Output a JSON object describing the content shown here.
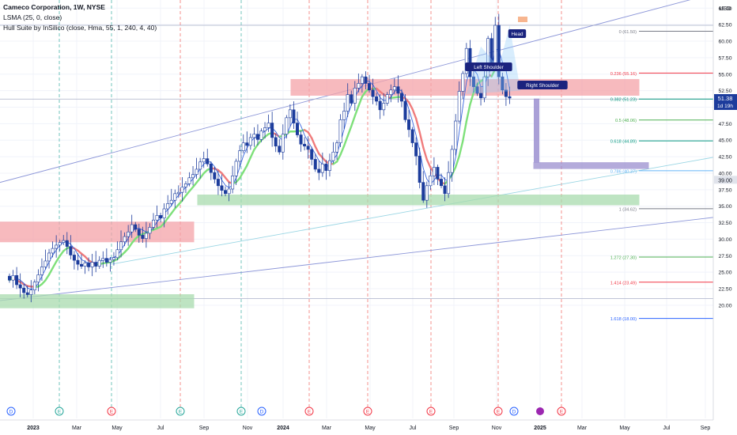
{
  "legend": {
    "symbol_line": "Cameco Corporation, 1W, NYSE",
    "indicator1": "LSMA (25, 0, close)",
    "indicator2": "Hull Suite by InSilico (close, Hma, 55, 1, 240, 4, 40)"
  },
  "price_axis": {
    "currency": "USD",
    "last_price": "51.38",
    "countdown": "1d 19h",
    "marker_price": "39.00"
  },
  "colors": {
    "bull": "#ffffff",
    "bear": "#1c3c9c",
    "hull_up": "#7ee07a",
    "hull_down": "#f07c7c",
    "lsma": "#3a68e0",
    "supply_zone": "#f5a3a9",
    "demand_zone": "#a9dcae",
    "projection": "#9b8fd0"
  },
  "annotations": {
    "left_shoulder": "Left Shoulder",
    "head": "Head",
    "right_shoulder": "Right Shoulder"
  },
  "event_badges": [
    "D",
    "E",
    "E",
    "E",
    "E",
    "D",
    "E",
    "E",
    "E",
    "E",
    "D",
    "E"
  ],
  "chart_data": {
    "type": "candlestick",
    "ylim": [
      17.5,
      67
    ],
    "y_ticks": [
      20,
      22.5,
      25,
      27.5,
      30,
      32.5,
      35,
      37.5,
      40,
      42.5,
      45,
      47.5,
      50,
      52.5,
      55,
      57.5,
      60,
      62.5,
      65
    ],
    "x_tick_labels": [
      "2023",
      "Mar",
      "May",
      "Jul",
      "Sep",
      "Nov",
      "2024",
      "Mar",
      "May",
      "Jul",
      "Sep",
      "Nov",
      "2025",
      "Mar",
      "May",
      "Jul",
      "Sep"
    ],
    "close": [
      23.8,
      24.5,
      23.1,
      22.6,
      21.9,
      21.6,
      22.3,
      23.5,
      24.6,
      25.8,
      26.7,
      27.9,
      28.6,
      29.1,
      29.5,
      29.8,
      28.9,
      27.6,
      26.8,
      26.2,
      25.9,
      26.4,
      25.8,
      26.5,
      25.9,
      26.8,
      27.1,
      26.5,
      26.9,
      27.2,
      28.4,
      29.6,
      30.4,
      31.1,
      32.2,
      31.5,
      30.6,
      30.1,
      30.9,
      31.8,
      32.9,
      33.6,
      33.2,
      34.6,
      35.4,
      35.9,
      36.9,
      37.1,
      37.9,
      38.4,
      39.3,
      39.8,
      40.6,
      41.7,
      42.2,
      41.4,
      40.1,
      39.1,
      38.1,
      37.4,
      36.9,
      37.6,
      39.6,
      41.8,
      43.4,
      44.6,
      44.2,
      45.4,
      45.9,
      45.1,
      46.4,
      46.9,
      47.6,
      45.4,
      44.1,
      43.2,
      45.9,
      48.4,
      49.6,
      47.6,
      45.8,
      44.4,
      44.1,
      43.6,
      42.1,
      40.6,
      40.1,
      41.4,
      40.4,
      41.9,
      43.2,
      44.6,
      48.1,
      49.4,
      51.9,
      50.6,
      52.9,
      53.6,
      54.6,
      53.6,
      52.6,
      51.6,
      50.9,
      49.6,
      50.6,
      51.9,
      52.6,
      53.1,
      52.1,
      50.9,
      48.1,
      46.6,
      44.6,
      42.6,
      38.6,
      35.9,
      38.1,
      39.6,
      40.9,
      39.1,
      38.1,
      36.9,
      40.1,
      43.6,
      47.9,
      52.4,
      55.1,
      58.9,
      54.6,
      53.1,
      52.1,
      51.4,
      54.6,
      60.4,
      56.4,
      62.4,
      54.6,
      52.6,
      51.6,
      51.38
    ],
    "markers": {
      "left_shoulder": 59.2,
      "head": 62.4,
      "right_shoulder": 54.6
    },
    "fib_levels": [
      {
        "label": "0 (61.50)",
        "value": 61.5
      },
      {
        "label": "0.236 (55.16)",
        "value": 55.16
      },
      {
        "label": "0.382 (51.23)",
        "value": 51.23
      },
      {
        "label": "0.5 (48.06)",
        "value": 48.06
      },
      {
        "label": "0.618 (44.89)",
        "value": 44.89
      },
      {
        "label": "0.786 (40.37)",
        "value": 40.37
      },
      {
        "label": "1 (34.62)",
        "value": 34.62
      },
      {
        "label": "1.272 (27.30)",
        "value": 27.3
      },
      {
        "label": "1.414 (23.49)",
        "value": 23.49
      },
      {
        "label": "1.618 (18.00)",
        "value": 18.0
      }
    ],
    "zones": {
      "supply_2023": [
        29.6,
        32.6
      ],
      "demand_2023": [
        19.6,
        21.6
      ],
      "supply_2024": [
        51.8,
        54.2
      ],
      "demand_2024": [
        35.2,
        36.7
      ],
      "target_box": [
        40.7,
        41.6
      ]
    },
    "series": [
      {
        "name": "LSMA (25, 0, close)"
      },
      {
        "name": "Hull Suite by InSilico (close, Hma, 55, 1, 240, 4, 40)"
      }
    ]
  }
}
